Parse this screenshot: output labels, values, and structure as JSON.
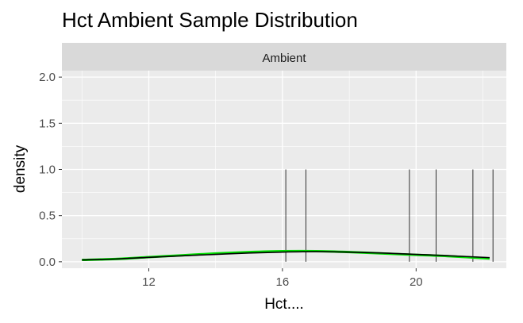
{
  "chart_data": {
    "type": "line",
    "title": "Hct Ambient Sample Distribution",
    "facet_label": "Ambient",
    "xlabel": "Hct....",
    "ylabel": "density",
    "xlim": [
      9.4,
      22.7
    ],
    "ylim": [
      -0.07,
      2.07
    ],
    "x_ticks": [
      12,
      16,
      20
    ],
    "x_tick_labels": [
      "12",
      "16",
      "20"
    ],
    "y_ticks": [
      0.0,
      0.5,
      1.0,
      1.5,
      2.0
    ],
    "y_tick_labels": [
      "0.0",
      "0.5",
      "1.0",
      "1.5",
      "2.0"
    ],
    "grid": true,
    "series": [
      {
        "color": "#00e000",
        "x": [
          10.0,
          11.0,
          12.0,
          13.0,
          14.0,
          15.0,
          16.0,
          17.0,
          18.0,
          19.0,
          20.0,
          21.0,
          22.2
        ],
        "values": [
          0.02,
          0.03,
          0.05,
          0.07,
          0.09,
          0.105,
          0.115,
          0.115,
          0.105,
          0.09,
          0.075,
          0.06,
          0.035
        ]
      },
      {
        "color": "#000000",
        "x": [
          10.0,
          11.0,
          12.0,
          13.0,
          14.0,
          15.0,
          16.0,
          17.0,
          18.0,
          19.0,
          20.0,
          21.0,
          22.2
        ],
        "values": [
          0.02,
          0.03,
          0.048,
          0.065,
          0.08,
          0.095,
          0.105,
          0.11,
          0.105,
          0.095,
          0.08,
          0.065,
          0.045
        ]
      }
    ],
    "rug": {
      "color": "#000000",
      "x": [
        16.1,
        16.7,
        19.8,
        20.6,
        21.7,
        22.3
      ],
      "height": 1.0
    }
  }
}
